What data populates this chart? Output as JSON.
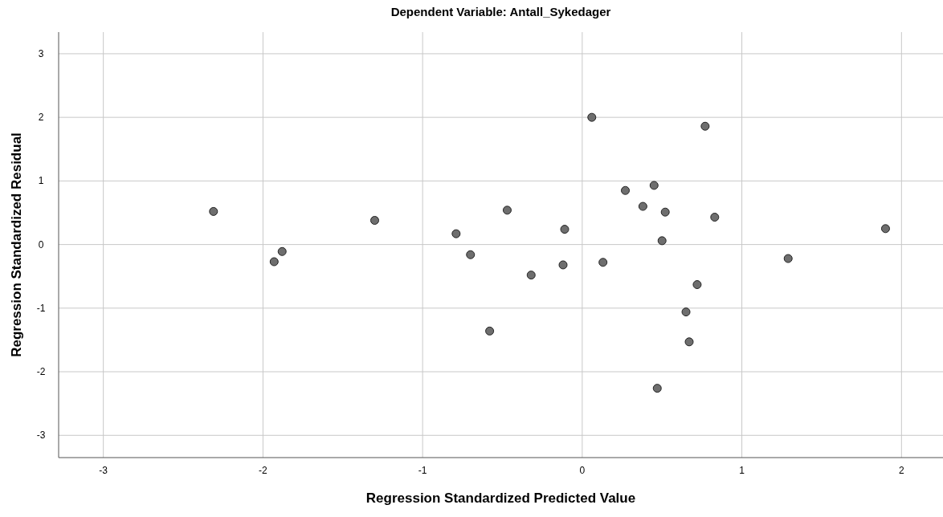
{
  "chart_data": {
    "type": "scatter",
    "title": "Dependent Variable: Antall_Sykedager",
    "xlabel": "Regression Standardized Predicted Value",
    "ylabel": "Regression Standardized Residual",
    "x": [
      -2.31,
      -1.93,
      -1.88,
      -1.3,
      -0.79,
      -0.7,
      -0.47,
      -0.58,
      -0.32,
      -0.11,
      -0.12,
      0.06,
      0.13,
      0.77,
      0.27,
      0.45,
      0.38,
      0.52,
      0.83,
      1.9,
      0.5,
      1.29,
      0.72,
      0.65,
      0.67,
      0.47
    ],
    "series": [
      {
        "color": "#6e6e6e",
        "values": [
          0.52,
          -0.27,
          -0.11,
          0.38,
          0.17,
          -0.16,
          0.54,
          -1.36,
          -0.48,
          0.24,
          -0.32,
          2.0,
          -0.28,
          1.86,
          0.85,
          0.93,
          0.6,
          0.51,
          0.43,
          0.25,
          0.06,
          -0.22,
          -0.63,
          -1.06,
          -1.53,
          -2.26
        ]
      }
    ],
    "xlim": [
      -3.28,
      2.26
    ],
    "ylim": [
      -3.35,
      3.34
    ],
    "xticks": [
      -3,
      -2,
      -1,
      0,
      1,
      2
    ],
    "yticks": [
      -3,
      -2,
      -1,
      0,
      1,
      2,
      3
    ],
    "grid": true,
    "marker": "circle"
  }
}
